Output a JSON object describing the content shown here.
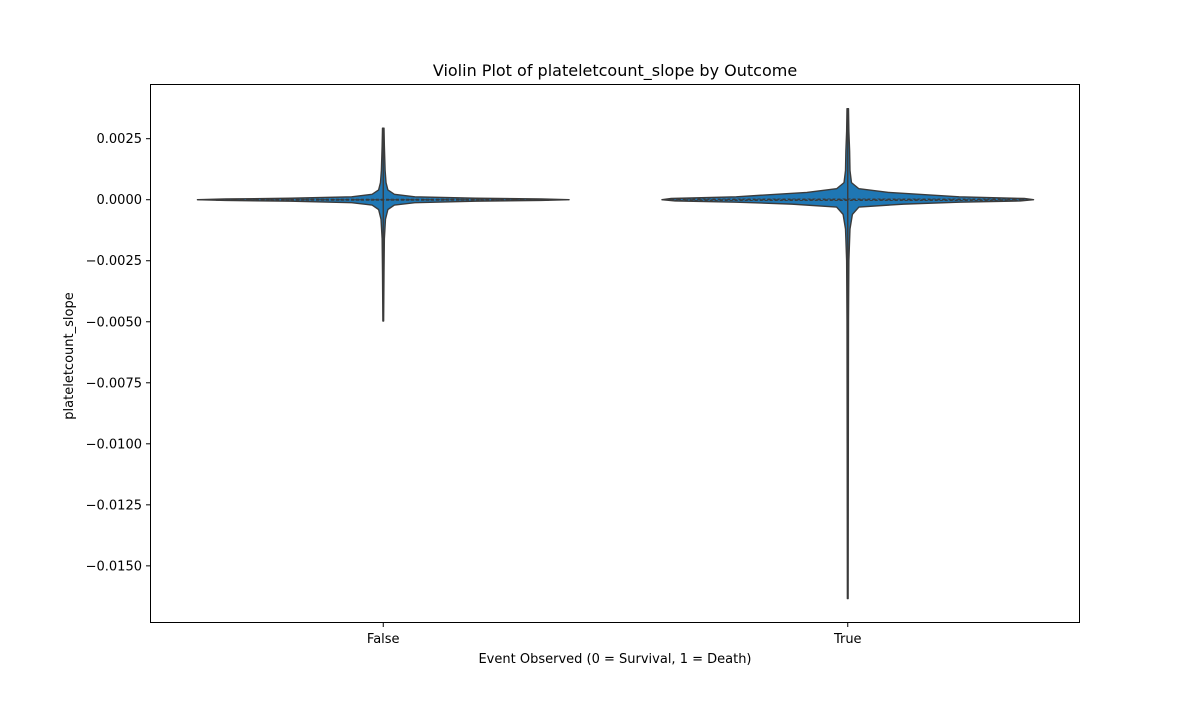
{
  "chart_data": {
    "type": "violin",
    "title": "Violin Plot of plateletcount_slope by Outcome",
    "xlabel": "Event Observed (0 = Survival, 1 = Death)",
    "ylabel": "plateletcount_slope",
    "categories": [
      "False",
      "True"
    ],
    "yticks": [
      0.0025,
      0.0,
      -0.0025,
      -0.005,
      -0.0075,
      -0.01,
      -0.0125,
      -0.015
    ],
    "ytick_labels": [
      "0.0025",
      "0.0000",
      "−0.0025",
      "−0.0050",
      "−0.0075",
      "−0.0100",
      "−0.0125",
      "−0.0150"
    ],
    "ylim": [
      -0.0173,
      0.0047
    ],
    "grid": false,
    "legend": false,
    "inner": "quartile",
    "fill_color": "#1f77b4",
    "edge_color": "#3b3b3b",
    "series": [
      {
        "category": "False",
        "min": -0.00497,
        "max": 0.00293,
        "median": 0.0,
        "q1": -2e-05,
        "q3": 2e-05,
        "density_profile": [
          {
            "y": 0.00293,
            "w": 0.004
          },
          {
            "y": 0.0022,
            "w": 0.006
          },
          {
            "y": 0.0012,
            "w": 0.01
          },
          {
            "y": 0.0007,
            "w": 0.015
          },
          {
            "y": 0.0004,
            "w": 0.025
          },
          {
            "y": 0.00022,
            "w": 0.06
          },
          {
            "y": 0.00012,
            "w": 0.17
          },
          {
            "y": 6e-05,
            "w": 0.5
          },
          {
            "y": 3e-05,
            "w": 0.85
          },
          {
            "y": 0.0,
            "w": 1.0
          },
          {
            "y": -3e-05,
            "w": 0.85
          },
          {
            "y": -6e-05,
            "w": 0.5
          },
          {
            "y": -0.00012,
            "w": 0.17
          },
          {
            "y": -0.00022,
            "w": 0.06
          },
          {
            "y": -0.0004,
            "w": 0.025
          },
          {
            "y": -0.0008,
            "w": 0.012
          },
          {
            "y": -0.0016,
            "w": 0.006
          },
          {
            "y": -0.003,
            "w": 0.004
          },
          {
            "y": -0.00497,
            "w": 0.002
          }
        ]
      },
      {
        "category": "True",
        "min": -0.01634,
        "max": 0.00373,
        "median": 0.0,
        "q1": -3e-05,
        "q3": 3e-05,
        "density_profile": [
          {
            "y": 0.00373,
            "w": 0.004
          },
          {
            "y": 0.0028,
            "w": 0.006
          },
          {
            "y": 0.002,
            "w": 0.01
          },
          {
            "y": 0.0012,
            "w": 0.012
          },
          {
            "y": 0.0007,
            "w": 0.02
          },
          {
            "y": 0.00045,
            "w": 0.06
          },
          {
            "y": 0.0003,
            "w": 0.22
          },
          {
            "y": 0.00012,
            "w": 0.6
          },
          {
            "y": 5e-05,
            "w": 0.95
          },
          {
            "y": 0.0,
            "w": 1.0
          },
          {
            "y": -5e-05,
            "w": 0.93
          },
          {
            "y": -0.0001,
            "w": 0.6
          },
          {
            "y": -0.00018,
            "w": 0.3
          },
          {
            "y": -0.0003,
            "w": 0.06
          },
          {
            "y": -0.0006,
            "w": 0.025
          },
          {
            "y": -0.0012,
            "w": 0.012
          },
          {
            "y": -0.0025,
            "w": 0.006
          },
          {
            "y": -0.005,
            "w": 0.004
          },
          {
            "y": -0.01,
            "w": 0.003
          },
          {
            "y": -0.01634,
            "w": 0.002
          }
        ]
      }
    ]
  }
}
